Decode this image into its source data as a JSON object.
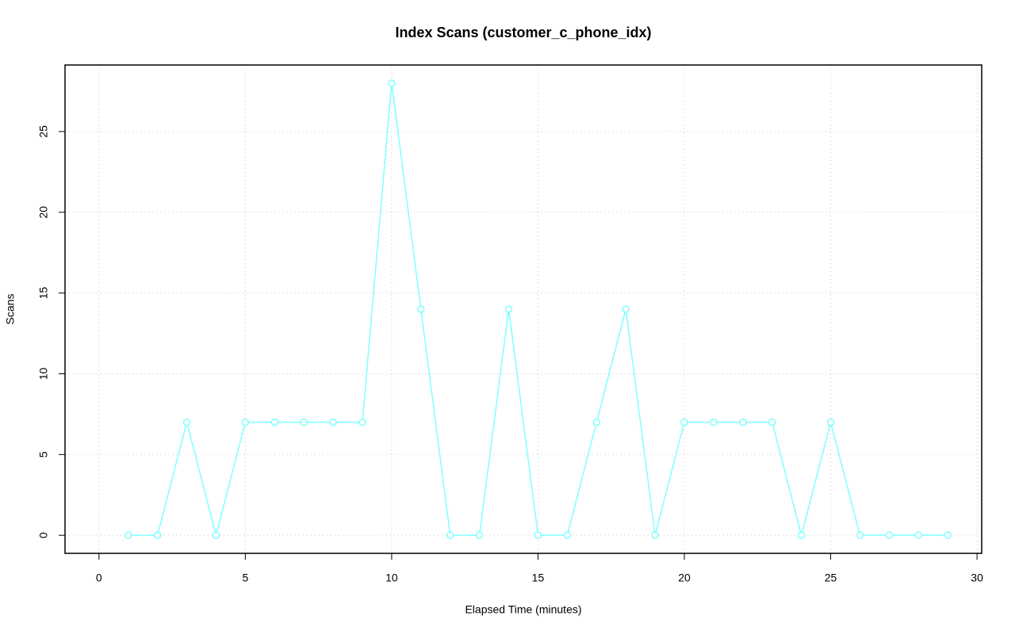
{
  "chart_data": {
    "type": "line",
    "title": "Index Scans (customer_c_phone_idx)",
    "x_label": "Elapsed Time (minutes)",
    "y_label": "Scans",
    "x": [
      1,
      2,
      3,
      4,
      5,
      6,
      7,
      8,
      9,
      10,
      11,
      12,
      13,
      14,
      15,
      16,
      17,
      18,
      19,
      20,
      21,
      22,
      23,
      24,
      25,
      26,
      27,
      28,
      29
    ],
    "values": [
      0,
      0,
      7,
      0,
      7,
      7,
      7,
      7,
      7,
      28,
      14,
      0,
      0,
      14,
      0,
      0,
      7,
      14,
      0,
      7,
      7,
      7,
      7,
      0,
      7,
      0,
      0,
      0,
      0
    ],
    "color": "#7fffff",
    "xlim": [
      -1.16,
      30.16
    ],
    "xticks": [
      0,
      5,
      10,
      15,
      20,
      25,
      30
    ],
    "ylim": [
      -1.12,
      29.12
    ],
    "yticks": [
      0,
      5,
      10,
      15,
      20,
      25
    ],
    "grid": true
  }
}
